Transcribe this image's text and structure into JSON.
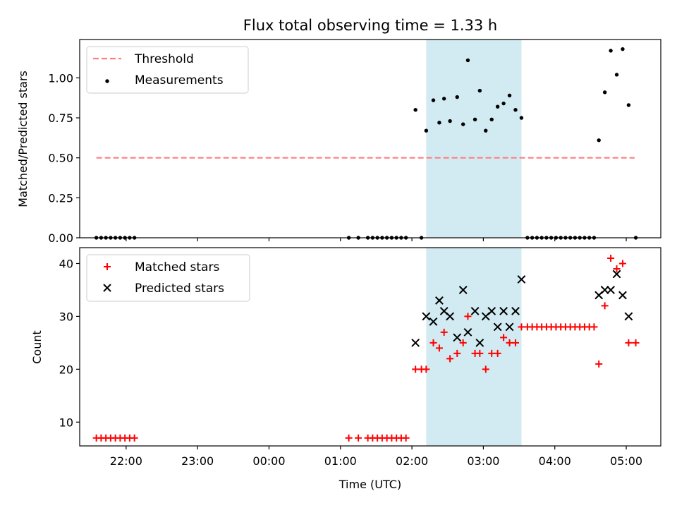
{
  "chart_data": [
    {
      "type": "scatter",
      "title": "Flux total observing time = 1.33 h",
      "xlabel": "",
      "ylabel": "Matched/Predicted stars",
      "ylim": [
        0,
        1.24
      ],
      "xlim": [
        "21:21",
        "05:29"
      ],
      "yticks": [
        "0.00",
        "0.25",
        "0.50",
        "0.75",
        "1.00"
      ],
      "legend_position": "top-left",
      "highlight_span": {
        "from": "02:12",
        "to": "03:32",
        "color": "#add8e6"
      },
      "threshold": {
        "name": "Threshold",
        "value": 0.5,
        "from": "21:35",
        "to": "05:07",
        "color": "#ff7f7f"
      },
      "series": [
        {
          "name": "Measurements",
          "marker": "dot",
          "color": "#000000",
          "points": [
            [
              "21:35",
              0
            ],
            [
              "21:39",
              0
            ],
            [
              "21:43",
              0
            ],
            [
              "21:47",
              0
            ],
            [
              "21:51",
              0
            ],
            [
              "21:55",
              0
            ],
            [
              "21:59",
              0
            ],
            [
              "22:03",
              0
            ],
            [
              "22:07",
              0
            ],
            [
              "01:07",
              0
            ],
            [
              "01:15",
              0
            ],
            [
              "01:23",
              0
            ],
            [
              "01:27",
              0
            ],
            [
              "01:31",
              0
            ],
            [
              "01:35",
              0
            ],
            [
              "01:39",
              0
            ],
            [
              "01:43",
              0
            ],
            [
              "01:47",
              0
            ],
            [
              "01:51",
              0
            ],
            [
              "01:55",
              0
            ],
            [
              "02:03",
              0.8
            ],
            [
              "02:08",
              0
            ],
            [
              "02:12",
              0.67
            ],
            [
              "02:18",
              0.86
            ],
            [
              "02:23",
              0.72
            ],
            [
              "02:27",
              0.87
            ],
            [
              "02:32",
              0.73
            ],
            [
              "02:38",
              0.88
            ],
            [
              "02:43",
              0.71
            ],
            [
              "02:47",
              1.11
            ],
            [
              "02:53",
              0.74
            ],
            [
              "02:57",
              0.92
            ],
            [
              "03:02",
              0.67
            ],
            [
              "03:07",
              0.74
            ],
            [
              "03:12",
              0.82
            ],
            [
              "03:17",
              0.84
            ],
            [
              "03:22",
              0.89
            ],
            [
              "03:27",
              0.8
            ],
            [
              "03:32",
              0.75
            ],
            [
              "03:37",
              0
            ],
            [
              "03:41",
              0
            ],
            [
              "03:45",
              0
            ],
            [
              "03:49",
              0
            ],
            [
              "03:53",
              0
            ],
            [
              "03:57",
              0
            ],
            [
              "04:01",
              0
            ],
            [
              "04:05",
              0
            ],
            [
              "04:09",
              0
            ],
            [
              "04:13",
              0
            ],
            [
              "04:17",
              0
            ],
            [
              "04:21",
              0
            ],
            [
              "04:25",
              0
            ],
            [
              "04:29",
              0
            ],
            [
              "04:33",
              0
            ],
            [
              "04:37",
              0.61
            ],
            [
              "04:42",
              0.91
            ],
            [
              "04:47",
              1.17
            ],
            [
              "04:52",
              1.02
            ],
            [
              "04:57",
              1.18
            ],
            [
              "05:02",
              0.83
            ],
            [
              "05:08",
              0
            ]
          ]
        }
      ]
    },
    {
      "type": "scatter",
      "title": "",
      "xlabel": "Time (UTC)",
      "ylabel": "Count",
      "ylim": [
        5.5,
        43
      ],
      "xlim": [
        "21:21",
        "05:29"
      ],
      "yticks": [
        "10",
        "20",
        "30",
        "40"
      ],
      "xticks": [
        "22:00",
        "23:00",
        "00:00",
        "01:00",
        "02:00",
        "03:00",
        "04:00",
        "05:00"
      ],
      "legend_position": "top-left",
      "highlight_span": {
        "from": "02:12",
        "to": "03:32",
        "color": "#add8e6"
      },
      "series": [
        {
          "name": "Matched stars",
          "marker": "plus",
          "color": "#ff0000",
          "points": [
            [
              "21:35",
              7
            ],
            [
              "21:39",
              7
            ],
            [
              "21:43",
              7
            ],
            [
              "21:47",
              7
            ],
            [
              "21:51",
              7
            ],
            [
              "21:55",
              7
            ],
            [
              "21:59",
              7
            ],
            [
              "22:03",
              7
            ],
            [
              "22:07",
              7
            ],
            [
              "01:07",
              7
            ],
            [
              "01:15",
              7
            ],
            [
              "01:23",
              7
            ],
            [
              "01:27",
              7
            ],
            [
              "01:31",
              7
            ],
            [
              "01:35",
              7
            ],
            [
              "01:39",
              7
            ],
            [
              "01:43",
              7
            ],
            [
              "01:47",
              7
            ],
            [
              "01:51",
              7
            ],
            [
              "01:55",
              7
            ],
            [
              "02:03",
              20
            ],
            [
              "02:08",
              20
            ],
            [
              "02:12",
              20
            ],
            [
              "02:18",
              25
            ],
            [
              "02:23",
              24
            ],
            [
              "02:27",
              27
            ],
            [
              "02:32",
              22
            ],
            [
              "02:38",
              23
            ],
            [
              "02:43",
              25
            ],
            [
              "02:47",
              30
            ],
            [
              "02:53",
              23
            ],
            [
              "02:57",
              23
            ],
            [
              "03:02",
              20
            ],
            [
              "03:07",
              23
            ],
            [
              "03:12",
              23
            ],
            [
              "03:17",
              26
            ],
            [
              "03:22",
              25
            ],
            [
              "03:27",
              25
            ],
            [
              "03:32",
              28
            ],
            [
              "03:37",
              28
            ],
            [
              "03:41",
              28
            ],
            [
              "03:45",
              28
            ],
            [
              "03:49",
              28
            ],
            [
              "03:53",
              28
            ],
            [
              "03:57",
              28
            ],
            [
              "04:01",
              28
            ],
            [
              "04:05",
              28
            ],
            [
              "04:09",
              28
            ],
            [
              "04:13",
              28
            ],
            [
              "04:17",
              28
            ],
            [
              "04:21",
              28
            ],
            [
              "04:25",
              28
            ],
            [
              "04:29",
              28
            ],
            [
              "04:33",
              28
            ],
            [
              "04:37",
              21
            ],
            [
              "04:42",
              32
            ],
            [
              "04:47",
              41
            ],
            [
              "04:52",
              39
            ],
            [
              "04:57",
              40
            ],
            [
              "05:02",
              25
            ],
            [
              "05:08",
              25
            ]
          ]
        },
        {
          "name": "Predicted stars",
          "marker": "x",
          "color": "#000000",
          "points": [
            [
              "02:03",
              25
            ],
            [
              "02:12",
              30
            ],
            [
              "02:18",
              29
            ],
            [
              "02:23",
              33
            ],
            [
              "02:27",
              31
            ],
            [
              "02:32",
              30
            ],
            [
              "02:38",
              26
            ],
            [
              "02:43",
              35
            ],
            [
              "02:47",
              27
            ],
            [
              "02:53",
              31
            ],
            [
              "02:57",
              25
            ],
            [
              "03:02",
              30
            ],
            [
              "03:07",
              31
            ],
            [
              "03:12",
              28
            ],
            [
              "03:17",
              31
            ],
            [
              "03:22",
              28
            ],
            [
              "03:27",
              31
            ],
            [
              "03:32",
              37
            ],
            [
              "04:37",
              34
            ],
            [
              "04:42",
              35
            ],
            [
              "04:47",
              35
            ],
            [
              "04:52",
              38
            ],
            [
              "04:57",
              34
            ],
            [
              "05:02",
              30
            ]
          ]
        }
      ]
    }
  ]
}
